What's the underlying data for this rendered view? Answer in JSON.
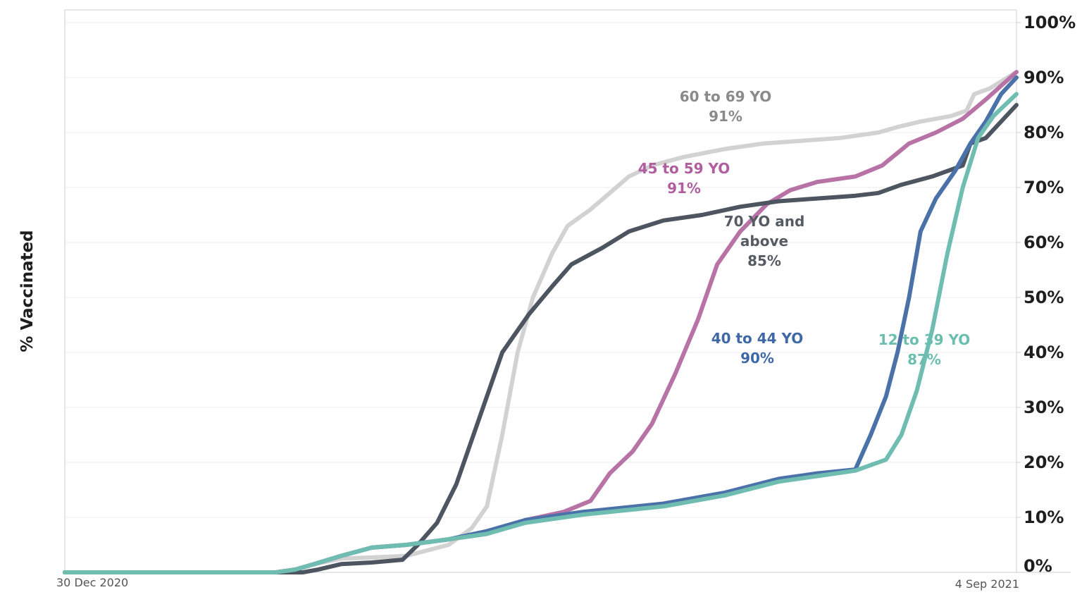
{
  "chart_data": {
    "type": "line",
    "title": "",
    "xlabel": "",
    "ylabel": "% Vaccinated",
    "x_range": [
      "2020-12-30",
      "2021-09-04"
    ],
    "x_tick_labels": [
      "30 Dec 2020",
      "4 Sep 2021"
    ],
    "ylim": [
      0,
      100
    ],
    "y_ticks": [
      0,
      10,
      20,
      30,
      40,
      50,
      60,
      70,
      80,
      90,
      100
    ],
    "y_tick_labels": [
      "0%",
      "10%",
      "20%",
      "30%",
      "40%",
      "50%",
      "60%",
      "70%",
      "80%",
      "90%",
      "100%"
    ],
    "y_axis_side": "right",
    "grid": true,
    "legend": "none (labels placed on chart)",
    "series": [
      {
        "name": "60 to 69 YO",
        "final_label": "91%",
        "color": "#d2d2d2",
        "points": [
          [
            "2020-12-30",
            0
          ],
          [
            "2021-02-23",
            0
          ],
          [
            "2021-02-28",
            0.5
          ],
          [
            "2021-03-05",
            1.5
          ],
          [
            "2021-03-12",
            2.5
          ],
          [
            "2021-03-20",
            2.7
          ],
          [
            "2021-03-29",
            3
          ],
          [
            "2021-04-09",
            5
          ],
          [
            "2021-04-15",
            8
          ],
          [
            "2021-04-19",
            12
          ],
          [
            "2021-04-23",
            25
          ],
          [
            "2021-04-27",
            40
          ],
          [
            "2021-05-01",
            50
          ],
          [
            "2021-05-06",
            58
          ],
          [
            "2021-05-10",
            63
          ],
          [
            "2021-05-16",
            66
          ],
          [
            "2021-05-21",
            69
          ],
          [
            "2021-05-26",
            72
          ],
          [
            "2021-06-01",
            74
          ],
          [
            "2021-06-09",
            75.5
          ],
          [
            "2021-06-20",
            77
          ],
          [
            "2021-06-30",
            78
          ],
          [
            "2021-07-10",
            78.5
          ],
          [
            "2021-07-20",
            79
          ],
          [
            "2021-07-30",
            80
          ],
          [
            "2021-08-04",
            81
          ],
          [
            "2021-08-10",
            82
          ],
          [
            "2021-08-18",
            83
          ],
          [
            "2021-08-22",
            84
          ],
          [
            "2021-08-24",
            87
          ],
          [
            "2021-08-28",
            88
          ],
          [
            "2021-09-04",
            91
          ]
        ]
      },
      {
        "name": "45 to 59 YO",
        "final_label": "91%",
        "color": "#b873a6",
        "points": [
          [
            "2020-12-30",
            0
          ],
          [
            "2021-02-23",
            0
          ],
          [
            "2021-02-28",
            0.5
          ],
          [
            "2021-03-05",
            1.5
          ],
          [
            "2021-03-12",
            3
          ],
          [
            "2021-03-20",
            4.5
          ],
          [
            "2021-03-29",
            5
          ],
          [
            "2021-04-09",
            6
          ],
          [
            "2021-04-19",
            7
          ],
          [
            "2021-04-29",
            9.5
          ],
          [
            "2021-05-09",
            11
          ],
          [
            "2021-05-16",
            13
          ],
          [
            "2021-05-21",
            18
          ],
          [
            "2021-05-27",
            22
          ],
          [
            "2021-06-01",
            27
          ],
          [
            "2021-06-07",
            36
          ],
          [
            "2021-06-13",
            46
          ],
          [
            "2021-06-18",
            56
          ],
          [
            "2021-06-24",
            62
          ],
          [
            "2021-07-01",
            67
          ],
          [
            "2021-07-07",
            69.5
          ],
          [
            "2021-07-14",
            71
          ],
          [
            "2021-07-24",
            72
          ],
          [
            "2021-07-31",
            74
          ],
          [
            "2021-08-07",
            78
          ],
          [
            "2021-08-14",
            80
          ],
          [
            "2021-08-21",
            82.5
          ],
          [
            "2021-08-27",
            86
          ],
          [
            "2021-09-04",
            91
          ]
        ]
      },
      {
        "name": "70 YO and above",
        "final_label": "85%",
        "color": "#4d5560",
        "points": [
          [
            "2020-12-30",
            0
          ],
          [
            "2021-03-02",
            0
          ],
          [
            "2021-03-06",
            0.5
          ],
          [
            "2021-03-12",
            1.5
          ],
          [
            "2021-03-20",
            1.8
          ],
          [
            "2021-03-28",
            2.3
          ],
          [
            "2021-04-01",
            5
          ],
          [
            "2021-04-06",
            9
          ],
          [
            "2021-04-11",
            16
          ],
          [
            "2021-04-17",
            28
          ],
          [
            "2021-04-23",
            40
          ],
          [
            "2021-04-30",
            47
          ],
          [
            "2021-05-06",
            52
          ],
          [
            "2021-05-11",
            56
          ],
          [
            "2021-05-19",
            59
          ],
          [
            "2021-05-26",
            62
          ],
          [
            "2021-06-04",
            64
          ],
          [
            "2021-06-14",
            65
          ],
          [
            "2021-06-24",
            66.5
          ],
          [
            "2021-07-04",
            67.5
          ],
          [
            "2021-07-14",
            68
          ],
          [
            "2021-07-24",
            68.5
          ],
          [
            "2021-07-30",
            69
          ],
          [
            "2021-08-05",
            70.5
          ],
          [
            "2021-08-13",
            72
          ],
          [
            "2021-08-21",
            74
          ],
          [
            "2021-08-23",
            78
          ],
          [
            "2021-08-27",
            79
          ],
          [
            "2021-09-04",
            85
          ]
        ]
      },
      {
        "name": "40 to 44 YO",
        "final_label": "90%",
        "color": "#4a72a9",
        "points": [
          [
            "2020-12-30",
            0
          ],
          [
            "2021-02-23",
            0
          ],
          [
            "2021-02-28",
            0.5
          ],
          [
            "2021-03-05",
            1.5
          ],
          [
            "2021-03-12",
            3
          ],
          [
            "2021-03-20",
            4.5
          ],
          [
            "2021-03-29",
            5
          ],
          [
            "2021-04-09",
            6
          ],
          [
            "2021-04-19",
            7.5
          ],
          [
            "2021-04-29",
            9.5
          ],
          [
            "2021-05-14",
            11
          ],
          [
            "2021-06-04",
            12.5
          ],
          [
            "2021-06-20",
            14.5
          ],
          [
            "2021-07-04",
            17
          ],
          [
            "2021-07-14",
            18
          ],
          [
            "2021-07-24",
            18.7
          ],
          [
            "2021-07-28",
            25
          ],
          [
            "2021-08-01",
            32
          ],
          [
            "2021-08-04",
            40
          ],
          [
            "2021-08-07",
            50
          ],
          [
            "2021-08-10",
            62
          ],
          [
            "2021-08-14",
            68
          ],
          [
            "2021-08-19",
            73
          ],
          [
            "2021-08-23",
            78
          ],
          [
            "2021-08-27",
            82
          ],
          [
            "2021-08-31",
            87
          ],
          [
            "2021-09-04",
            90
          ]
        ]
      },
      {
        "name": "12 to 39 YO",
        "final_label": "87%",
        "color": "#6fbdb1",
        "points": [
          [
            "2020-12-30",
            0
          ],
          [
            "2021-02-23",
            0
          ],
          [
            "2021-02-28",
            0.5
          ],
          [
            "2021-03-05",
            1.5
          ],
          [
            "2021-03-12",
            3
          ],
          [
            "2021-03-20",
            4.5
          ],
          [
            "2021-03-29",
            5
          ],
          [
            "2021-04-09",
            6
          ],
          [
            "2021-04-19",
            7
          ],
          [
            "2021-04-29",
            9
          ],
          [
            "2021-05-14",
            10.5
          ],
          [
            "2021-06-04",
            12
          ],
          [
            "2021-06-20",
            14
          ],
          [
            "2021-07-04",
            16.5
          ],
          [
            "2021-07-14",
            17.5
          ],
          [
            "2021-07-24",
            18.5
          ],
          [
            "2021-08-01",
            20.5
          ],
          [
            "2021-08-05",
            25
          ],
          [
            "2021-08-09",
            33
          ],
          [
            "2021-08-13",
            44
          ],
          [
            "2021-08-17",
            58
          ],
          [
            "2021-08-21",
            70
          ],
          [
            "2021-08-25",
            79
          ],
          [
            "2021-08-29",
            83
          ],
          [
            "2021-09-04",
            87
          ]
        ]
      }
    ],
    "annotations": [
      {
        "series": "60 to 69 YO",
        "lines": [
          "60 to 69 YO",
          "91%"
        ],
        "color": "#8a8a8a"
      },
      {
        "series": "45 to 59 YO",
        "lines": [
          "45 to 59 YO",
          "91%"
        ],
        "color": "#b05e9f"
      },
      {
        "series": "70 YO and above",
        "lines": [
          "70 YO and",
          "above",
          "85%"
        ],
        "color": "#555b63"
      },
      {
        "series": "40 to 44 YO",
        "lines": [
          "40 to 44 YO",
          "90%"
        ],
        "color": "#3f68a6"
      },
      {
        "series": "12 to 39 YO",
        "lines": [
          "12 to 39 YO",
          "87%"
        ],
        "color": "#6bbdb0"
      }
    ]
  }
}
